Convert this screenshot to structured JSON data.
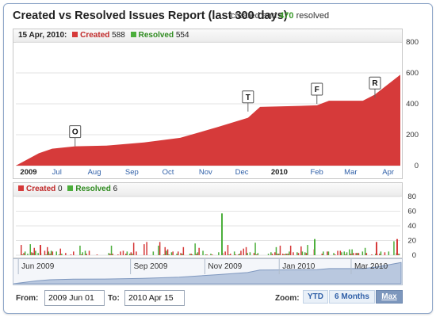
{
  "report": {
    "title_dark": "Created vs Resolved Issues Report (last 300 days)",
    "title_red": "ys",
    "summary_pre": "",
    "summary_created": "",
    "summary_mid": "created and",
    "summary_resolved": "470",
    "summary_post": "resolved"
  },
  "top_chart": {
    "legend_date": "15 Apr, 2010:",
    "created_label": "Created",
    "created_value": "588",
    "resolved_label": "Resolved",
    "resolved_value": "554",
    "y_ticks": [
      "800",
      "600",
      "400",
      "200",
      "0"
    ],
    "x_labels": [
      "2009",
      "Jul",
      "Aug",
      "Sep",
      "Oct",
      "Nov",
      "Dec",
      "2010",
      "Feb",
      "Mar",
      "Apr"
    ],
    "markers": [
      "O",
      "T",
      "F",
      "R"
    ]
  },
  "bottom_chart": {
    "created_label": "Created",
    "created_value": "0",
    "resolved_label": "Resolved",
    "resolved_value": "6",
    "y_ticks": [
      "80",
      "60",
      "40",
      "20",
      "0"
    ]
  },
  "navigator": {
    "labels": [
      "Jun 2009",
      "Sep 2009",
      "Nov 2009",
      "Jan 2010",
      "Mar 2010"
    ]
  },
  "controls": {
    "from_label": "From:",
    "from_value": "2009 Jun 01",
    "to_label": "To:",
    "to_value": "2010 Apr 15",
    "zoom_label": "Zoom:",
    "zoom_options": [
      "YTD",
      "6 Months",
      "Max"
    ],
    "zoom_selected": "Max"
  },
  "colors": {
    "created": "#d63a3a",
    "resolved": "#4caf3c",
    "frame": "#8fa7c9"
  },
  "chart_data": {
    "type": "area",
    "title": "Created vs Resolved Issues Report (last 300 days)",
    "x": [
      "2009-06-01",
      "2009-06-20",
      "2009-07-01",
      "2009-07-20",
      "2009-08-15",
      "2009-09-15",
      "2009-10-15",
      "2009-11-15",
      "2009-12-10",
      "2009-12-20",
      "2010-01-15",
      "2010-02-05",
      "2010-02-15",
      "2010-03-15",
      "2010-03-25",
      "2010-04-15"
    ],
    "series": [
      {
        "name": "Created",
        "values": [
          0,
          80,
          110,
          125,
          130,
          150,
          180,
          250,
          310,
          380,
          385,
          390,
          420,
          420,
          460,
          588
        ]
      },
      {
        "name": "Resolved",
        "values": [
          0,
          60,
          100,
          120,
          128,
          145,
          170,
          225,
          300,
          365,
          370,
          372,
          410,
          415,
          445,
          554
        ]
      }
    ],
    "ylim": [
      0,
      800
    ]
  }
}
